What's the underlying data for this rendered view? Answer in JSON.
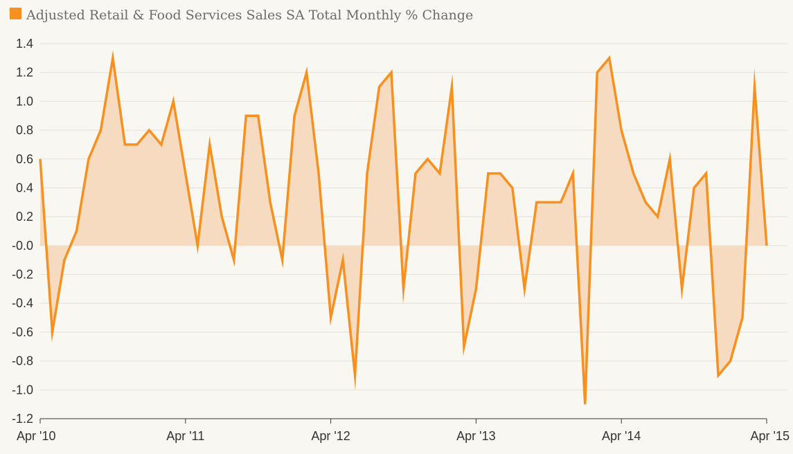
{
  "chart_data": {
    "type": "area",
    "legend": {
      "label": "Adjusted Retail & Food Services Sales SA Total Monthly % Change",
      "position": "top-left"
    },
    "colors": {
      "line": "#f7901e",
      "fill": "#f7dbc0",
      "background": "#f9f7f1"
    },
    "x_start": "2010-04",
    "x_ticks": [
      "Apr '10",
      "Apr '11",
      "Apr '12",
      "Apr '13",
      "Apr '14",
      "Apr '15"
    ],
    "y_ticks": [
      "1.4",
      "1.2",
      "1.0",
      "0.8",
      "0.6",
      "0.4",
      "0.2",
      "-0.0",
      "-0.2",
      "-0.4",
      "-0.6",
      "-0.8",
      "-1.0",
      "-1.2"
    ],
    "ylim": [
      -1.2,
      1.4
    ],
    "grid": true,
    "series": [
      {
        "values": [
          0.6,
          -0.6,
          -0.1,
          0.1,
          0.6,
          0.8,
          1.3,
          0.7,
          0.7,
          0.8,
          0.7,
          1.0,
          0.5,
          0.0,
          0.7,
          0.2,
          -0.1,
          0.9,
          0.9,
          0.3,
          -0.1,
          0.9,
          1.2,
          0.5,
          -0.5,
          -0.1,
          -0.9,
          0.5,
          1.1,
          1.2,
          -0.3,
          0.5,
          0.6,
          0.5,
          1.1,
          -0.7,
          -0.3,
          0.5,
          0.5,
          0.4,
          -0.3,
          0.3,
          0.3,
          0.3,
          0.5,
          -1.1,
          1.2,
          1.3,
          0.8,
          0.5,
          0.3,
          0.2,
          0.6,
          -0.3,
          0.4,
          0.5,
          -0.9,
          -0.8,
          -0.5,
          1.1,
          0.0
        ]
      }
    ]
  }
}
